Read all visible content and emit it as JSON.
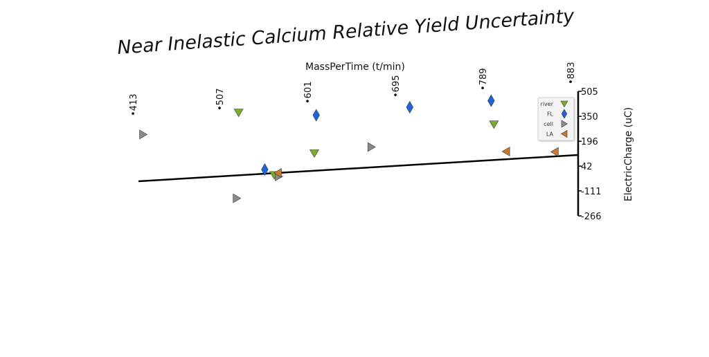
{
  "chart_data": {
    "type": "scatter",
    "title": "Near Inelastic Calcium Relative Yield Uncertainty",
    "xlabel": "MassPerTime (t/min)",
    "ylabel": "ElectricCharge (uC)",
    "x_ticks": [
      "413",
      "507",
      "601",
      "695",
      "789",
      "883"
    ],
    "y_ticks": [
      "505",
      "350",
      "196",
      "42",
      "-111",
      "-266"
    ],
    "xlim": [
      413,
      883
    ],
    "ylim": [
      -266,
      505
    ],
    "grid": false,
    "legend_position": "top-right",
    "series": [
      {
        "name": "river",
        "marker": "triangle-down",
        "color": "#7caa2d",
        "points": [
          [
            520,
            430
          ],
          [
            601,
            150
          ],
          [
            558,
            30
          ],
          [
            793,
            262
          ]
        ]
      },
      {
        "name": "FL",
        "marker": "diamond",
        "color": "#1f63d6",
        "points": [
          [
            603,
            385
          ],
          [
            703,
            400
          ],
          [
            790,
            410
          ],
          [
            548,
            68
          ]
        ]
      },
      {
        "name": "cell",
        "marker": "triangle-right",
        "color": "#8a8a8a",
        "points": [
          [
            418,
            330
          ],
          [
            662,
            168
          ],
          [
            563,
            20
          ],
          [
            518,
            -100
          ]
        ]
      },
      {
        "name": "LA",
        "marker": "triangle-left",
        "color": "#c8792a",
        "points": [
          [
            562,
            42
          ],
          [
            806,
            90
          ],
          [
            858,
            70
          ]
        ]
      }
    ],
    "colors": {
      "river": "#7caa2d",
      "FL": "#1f63d6",
      "cell": "#8a8a8a",
      "LA": "#c8792a"
    }
  }
}
